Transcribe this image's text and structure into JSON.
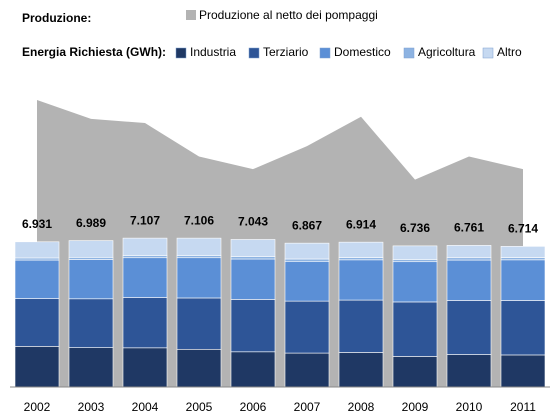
{
  "chart_data": {
    "type": "bar",
    "production_title": "Produzione:",
    "demand_title": "Energia Richiesta (GWh):",
    "categories": [
      "2002",
      "2003",
      "2004",
      "2005",
      "2006",
      "2007",
      "2008",
      "2009",
      "2010",
      "2011"
    ],
    "area": {
      "name": "Produzione al netto dei pompaggi",
      "color": "#b3b3b3",
      "values": [
        13700,
        12800,
        12600,
        11000,
        10400,
        11500,
        12900,
        9900,
        11000,
        10400
      ]
    },
    "series": [
      {
        "name": "Industria",
        "color": "#1f3864",
        "values": [
          1940,
          1880,
          1870,
          1800,
          1680,
          1620,
          1650,
          1460,
          1550,
          1530
        ]
      },
      {
        "name": "Terziario",
        "color": "#2e5597",
        "values": [
          2280,
          2330,
          2400,
          2450,
          2500,
          2480,
          2500,
          2600,
          2580,
          2600
        ]
      },
      {
        "name": "Domestico",
        "color": "#5b8fd6",
        "values": [
          1840,
          1880,
          1900,
          1920,
          1930,
          1900,
          1920,
          1920,
          1930,
          1940
        ]
      },
      {
        "name": "Agricoltura",
        "color": "#8db3e2",
        "values": [
          100,
          100,
          110,
          110,
          110,
          110,
          110,
          110,
          110,
          110
        ]
      },
      {
        "name": "Altro",
        "color": "#c6d9f1",
        "values": [
          771,
          799,
          827,
          826,
          823,
          757,
          734,
          646,
          591,
          534
        ]
      }
    ],
    "totals": [
      6931,
      6989,
      7107,
      7106,
      7043,
      6867,
      6914,
      6736,
      6761,
      6714
    ],
    "total_labels": [
      "6.931",
      "6.989",
      "7.107",
      "7.106",
      "7.043",
      "6.867",
      "6.914",
      "6.736",
      "6.761",
      "6.714"
    ]
  }
}
